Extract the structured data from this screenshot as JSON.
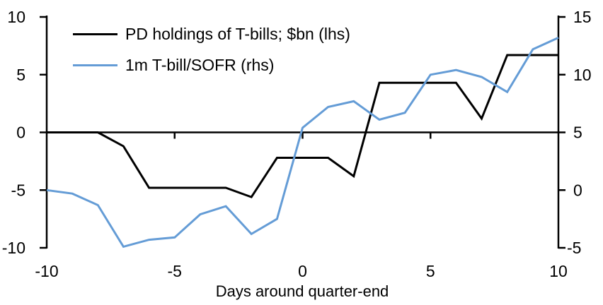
{
  "chart_data": {
    "type": "line",
    "title": "",
    "xlabel": "Days around quarter-end",
    "grid": false,
    "legend_position": "top-left",
    "x_axis": {
      "label": "Days around quarter-end",
      "range": [
        -10,
        10
      ],
      "ticks": [
        -10,
        -5,
        0,
        5,
        10
      ]
    },
    "left_axis": {
      "range": [
        -10,
        10
      ],
      "ticks": [
        10,
        5,
        0,
        -5,
        -10
      ]
    },
    "right_axis": {
      "range": [
        -5,
        15
      ],
      "ticks": [
        15,
        10,
        5,
        0,
        -5
      ]
    },
    "x": [
      -10,
      -9,
      -8,
      -7,
      -6,
      -5,
      -4,
      -3,
      -2,
      -1,
      0,
      1,
      2,
      3,
      4,
      5,
      6,
      7,
      8,
      9,
      10
    ],
    "series": [
      {
        "name": "PD holdings of T-bills; $bn (lhs)",
        "axis": "left",
        "color": "#000000",
        "values": [
          0,
          0,
          0,
          -1.2,
          -4.8,
          -4.8,
          -4.8,
          -4.8,
          -5.6,
          -2.2,
          -2.2,
          -2.2,
          -3.8,
          4.3,
          4.3,
          4.3,
          4.3,
          1.2,
          6.7,
          6.7,
          6.7
        ]
      },
      {
        "name": "1m T-bill/SOFR (rhs)",
        "axis": "right",
        "color": "#649CD6",
        "values": [
          0,
          -0.3,
          -1.3,
          -4.9,
          -4.3,
          -4.1,
          -2.1,
          -1.4,
          -3.8,
          -2.5,
          5.4,
          7.2,
          7.7,
          6.1,
          6.7,
          10.0,
          10.4,
          9.8,
          8.5,
          12.2,
          13.2
        ]
      }
    ]
  },
  "colors": {
    "axis": "#000000",
    "background": "#ffffff",
    "series_black": "#000000",
    "series_blue": "#649CD6"
  }
}
